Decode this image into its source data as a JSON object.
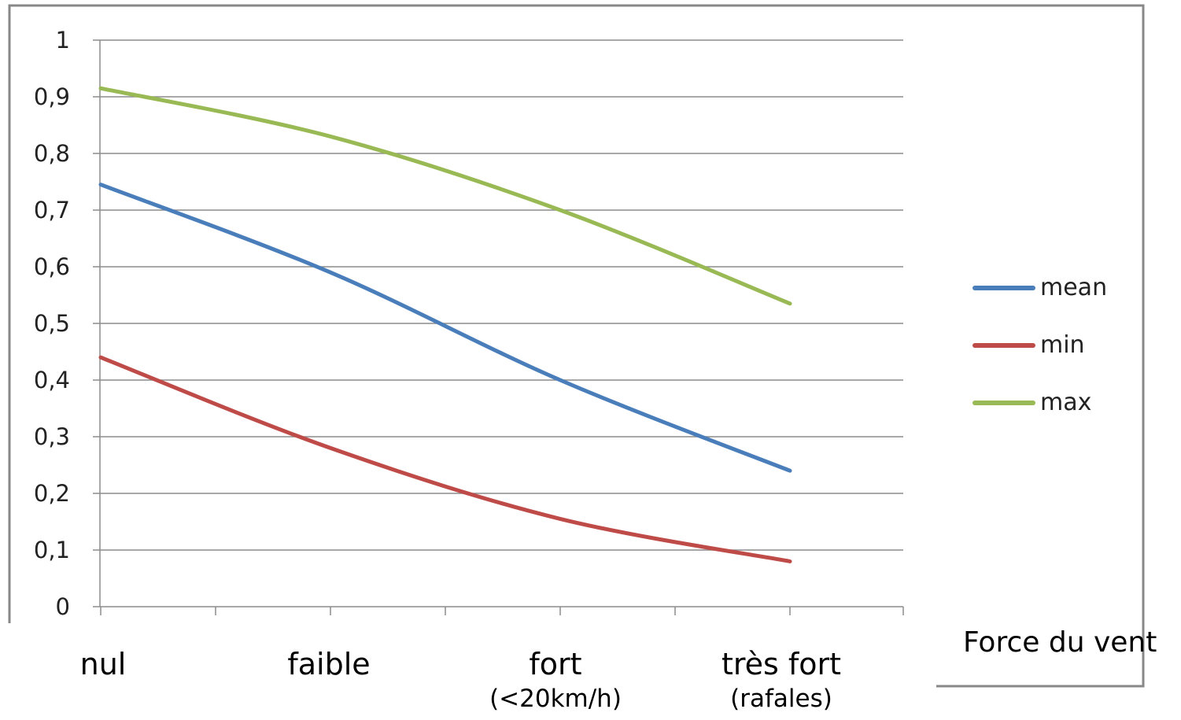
{
  "chart_data": {
    "type": "line",
    "xlabel": "Force du vent",
    "categories": [
      "nul",
      "faible",
      "fort",
      "très fort"
    ],
    "category_sublabels": [
      "",
      "",
      "(<20km/h)",
      "(rafales)"
    ],
    "ylim": [
      0,
      1
    ],
    "yticks": [
      "0",
      "0,1",
      "0,2",
      "0,3",
      "0,4",
      "0,5",
      "0,6",
      "0,7",
      "0,8",
      "0,9",
      "1"
    ],
    "grid": true,
    "legend_position": "right",
    "series": [
      {
        "name": "mean",
        "color": "#4a7ebb",
        "values": [
          0.745,
          0.59,
          0.4,
          0.24
        ]
      },
      {
        "name": "min",
        "color": "#be4b48",
        "values": [
          0.44,
          0.28,
          0.155,
          0.08
        ]
      },
      {
        "name": "max",
        "color": "#98b954",
        "values": [
          0.915,
          0.83,
          0.7,
          0.535
        ]
      }
    ]
  }
}
